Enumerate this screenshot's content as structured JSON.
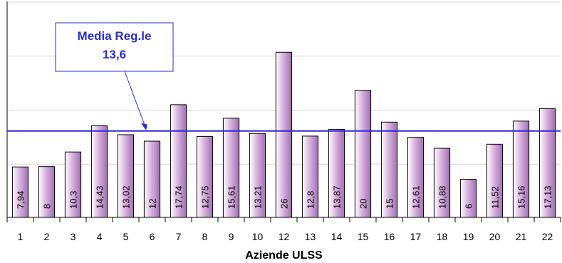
{
  "chart_data": {
    "type": "bar",
    "categories": [
      "1",
      "2",
      "3",
      "4",
      "5",
      "6",
      "7",
      "8",
      "9",
      "10",
      "12",
      "13",
      "14",
      "15",
      "16",
      "17",
      "18",
      "19",
      "20",
      "21",
      "22"
    ],
    "values": [
      7.94,
      8,
      10.3,
      14.43,
      13.02,
      12,
      17.74,
      12.75,
      15.61,
      13.21,
      26,
      12.8,
      13.87,
      20,
      15,
      12.61,
      10.88,
      6,
      11.52,
      15.16,
      17.13
    ],
    "value_labels": [
      "7,94",
      "8",
      "10,3",
      "14,43",
      "13,02",
      "12",
      "17,74",
      "12,75",
      "15,61",
      "13,21",
      "26",
      "12,8",
      "13,87",
      "20",
      "15",
      "12,61",
      "10,88",
      "6",
      "11,52",
      "15,16",
      "17,13"
    ],
    "xlabel": "Aziende ULSS",
    "ylabel": "",
    "ylim": [
      0,
      34
    ],
    "grid": "horizontal",
    "reference_line": {
      "value": 13.6,
      "color": "#2b2bd1"
    },
    "annotation": {
      "line1": "Media Reg.le",
      "line2": "13,6",
      "color": "#2b2bd1"
    },
    "bar_gradient": [
      "#ffffff",
      "#d9b3df",
      "#a070b2"
    ]
  }
}
